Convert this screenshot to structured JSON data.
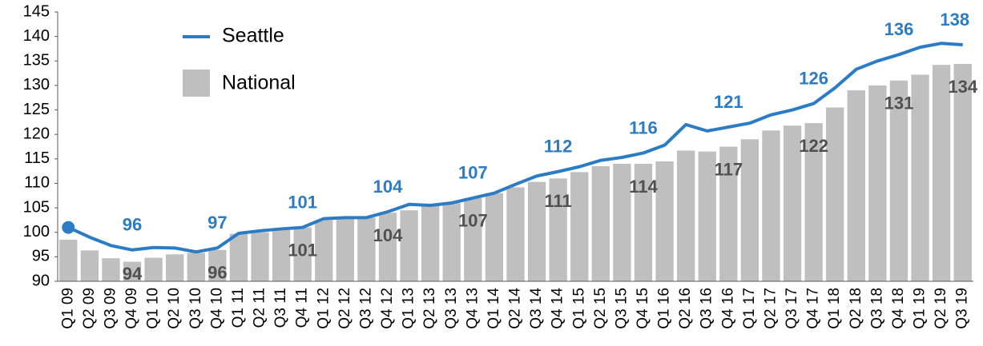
{
  "chart_data": {
    "type": "bar-line",
    "categories": [
      "Q1 09",
      "Q2 09",
      "Q3 09",
      "Q4 09",
      "Q1 10",
      "Q2 10",
      "Q3 10",
      "Q4 10",
      "Q1 11",
      "Q2 11",
      "Q3 11",
      "Q4 11",
      "Q1 12",
      "Q2 12",
      "Q3 12",
      "Q4 12",
      "Q1 13",
      "Q2 13",
      "Q3 13",
      "Q4 13",
      "Q1 14",
      "Q2 14",
      "Q3 14",
      "Q4 14",
      "Q1 15",
      "Q2 15",
      "Q3 15",
      "Q4 15",
      "Q1 16",
      "Q2 16",
      "Q3 16",
      "Q4 16",
      "Q1 17",
      "Q2 17",
      "Q3 17",
      "Q4 17",
      "Q1 18",
      "Q2 18",
      "Q3 18",
      "Q4 18",
      "Q1 19",
      "Q2 19",
      "Q3 19"
    ],
    "series": [
      {
        "name": "Seattle",
        "type": "line",
        "color": "#2b7cc4",
        "values": [
          101,
          99,
          97.3,
          96.4,
          96.9,
          96.8,
          96,
          96.8,
          99.8,
          100.3,
          100.7,
          101,
          102.8,
          103,
          103,
          104.2,
          105.7,
          105.5,
          106,
          107,
          108,
          109.8,
          111.5,
          112.4,
          113.4,
          114.7,
          115.3,
          116.2,
          117.8,
          122,
          120.7,
          121.5,
          122.3,
          124,
          125,
          126.3,
          129.5,
          133.3,
          135,
          136.3,
          137.8,
          138.6,
          138.3
        ],
        "value_labels": [
          null,
          null,
          null,
          "96",
          null,
          null,
          null,
          "97",
          null,
          null,
          null,
          "101",
          null,
          null,
          null,
          "104",
          null,
          null,
          null,
          "107",
          null,
          null,
          null,
          "112",
          null,
          null,
          null,
          "116",
          null,
          null,
          null,
          "121",
          null,
          null,
          null,
          "126",
          null,
          null,
          null,
          "136",
          null,
          null,
          "138"
        ]
      },
      {
        "name": "National",
        "type": "bar",
        "color": "#bfbfbf",
        "values": [
          98.5,
          96.3,
          94.7,
          94,
          94.8,
          95.5,
          95.8,
          96.4,
          99.7,
          100,
          100.5,
          101,
          102.5,
          103,
          103,
          104,
          104.5,
          105.5,
          106,
          107,
          108,
          109.2,
          110.3,
          111,
          112.3,
          113.5,
          114,
          114,
          114.5,
          116.7,
          116.5,
          117.5,
          119,
          120.8,
          121.8,
          122.3,
          125.5,
          129,
          130,
          131,
          132.2,
          134.2,
          134.4
        ],
        "value_labels": [
          null,
          null,
          null,
          "94",
          null,
          null,
          null,
          "96",
          null,
          null,
          null,
          "101",
          null,
          null,
          null,
          "104",
          null,
          null,
          null,
          "107",
          null,
          null,
          null,
          "111",
          null,
          null,
          null,
          "114",
          null,
          null,
          null,
          "117",
          null,
          null,
          null,
          "122",
          null,
          null,
          null,
          "131",
          null,
          null,
          "134"
        ]
      }
    ],
    "ylim": [
      90,
      145
    ],
    "yticks": [
      90,
      95,
      100,
      105,
      110,
      115,
      120,
      125,
      130,
      135,
      140,
      145
    ],
    "legend": "upper-left"
  }
}
